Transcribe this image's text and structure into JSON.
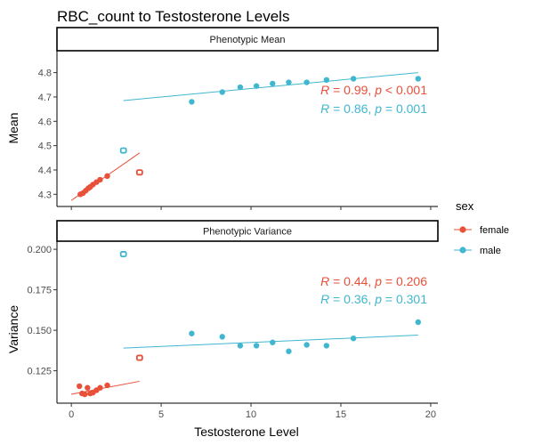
{
  "title": "RBC_count to Testosterone Levels",
  "colors": {
    "female": "#E8503A",
    "male": "#40B7CF"
  },
  "legend": {
    "title": "sex",
    "items": [
      {
        "key": "female",
        "label": "female"
      },
      {
        "key": "male",
        "label": "male"
      }
    ]
  },
  "chart_data": {
    "type": "scatter",
    "title": "RBC_count to Testosterone Levels",
    "xlabel": "Testosterone Level",
    "xlim": [
      -0.8,
      20.4
    ],
    "x_ticks": [
      0,
      5,
      10,
      15,
      20
    ],
    "panels": [
      {
        "strip": "Phenotypic Mean",
        "ylabel": "Mean",
        "ylim": [
          4.25,
          4.89
        ],
        "y_ticks": [
          4.3,
          4.4,
          4.5,
          4.6,
          4.7,
          4.8
        ],
        "y_tick_labels": [
          "4.3",
          "4.4",
          "4.5",
          "4.6",
          "4.7",
          "4.8"
        ],
        "series": [
          {
            "name": "female",
            "points": [
              [
                0.5,
                4.3
              ],
              [
                0.65,
                4.305
              ],
              [
                0.8,
                4.315
              ],
              [
                0.95,
                4.325
              ],
              [
                1.05,
                4.33
              ],
              [
                1.2,
                4.34
              ],
              [
                1.4,
                4.35
              ],
              [
                1.6,
                4.36
              ],
              [
                2.0,
                4.375
              ]
            ],
            "open_points": [
              [
                3.8,
                4.39
              ]
            ],
            "fit": [
              [
                0.0,
                4.275
              ],
              [
                3.8,
                4.47
              ]
            ],
            "stat": "R = 0.99, p < 0.001"
          },
          {
            "name": "male",
            "points": [
              [
                6.7,
                4.68
              ],
              [
                8.4,
                4.72
              ],
              [
                9.4,
                4.74
              ],
              [
                10.3,
                4.745
              ],
              [
                11.2,
                4.755
              ],
              [
                12.1,
                4.76
              ],
              [
                13.1,
                4.76
              ],
              [
                14.2,
                4.77
              ],
              [
                15.7,
                4.775
              ],
              [
                19.3,
                4.775
              ]
            ],
            "open_points": [
              [
                2.9,
                4.48
              ]
            ],
            "fit": [
              [
                2.9,
                4.685
              ],
              [
                19.3,
                4.8
              ]
            ],
            "stat": "R = 0.86, p = 0.001"
          }
        ]
      },
      {
        "strip": "Phenotypic Variance",
        "ylabel": "Variance",
        "ylim": [
          0.105,
          0.205
        ],
        "y_ticks": [
          0.125,
          0.15,
          0.175,
          0.2
        ],
        "y_tick_labels": [
          "0.125",
          "0.150",
          "0.175",
          "0.200"
        ],
        "series": [
          {
            "name": "female",
            "points": [
              [
                0.45,
                0.1155
              ],
              [
                0.6,
                0.111
              ],
              [
                0.75,
                0.1105
              ],
              [
                0.9,
                0.1145
              ],
              [
                1.05,
                0.111
              ],
              [
                1.2,
                0.1115
              ],
              [
                1.4,
                0.113
              ],
              [
                1.6,
                0.1145
              ],
              [
                2.0,
                0.116
              ]
            ],
            "open_points": [
              [
                3.8,
                0.133
              ]
            ],
            "fit": [
              [
                0.0,
                0.1105
              ],
              [
                3.8,
                0.1185
              ]
            ],
            "stat": "R = 0.44, p = 0.206"
          },
          {
            "name": "male",
            "points": [
              [
                6.7,
                0.148
              ],
              [
                8.4,
                0.146
              ],
              [
                9.4,
                0.1405
              ],
              [
                10.3,
                0.1405
              ],
              [
                11.2,
                0.1425
              ],
              [
                12.1,
                0.137
              ],
              [
                13.1,
                0.141
              ],
              [
                14.2,
                0.1405
              ],
              [
                15.7,
                0.145
              ],
              [
                19.3,
                0.155
              ]
            ],
            "open_points": [
              [
                2.9,
                0.197
              ]
            ],
            "fit": [
              [
                2.9,
                0.139
              ],
              [
                19.3,
                0.147
              ]
            ],
            "stat": "R = 0.36, p = 0.301"
          }
        ]
      }
    ]
  }
}
